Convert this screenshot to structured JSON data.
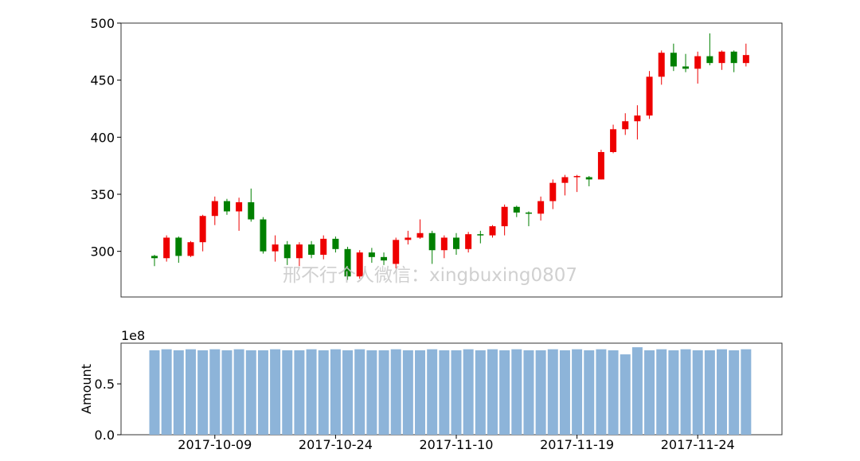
{
  "chart_data": [
    {
      "type": "candlestick",
      "ylim": [
        260,
        500
      ],
      "yticks": [
        300,
        350,
        400,
        450,
        500
      ],
      "colors": {
        "up": "#ee0000",
        "down": "#008000"
      },
      "ohlc": [
        [
          296,
          294,
          297,
          287
        ],
        [
          294,
          312,
          314,
          291
        ],
        [
          312,
          296,
          313,
          290
        ],
        [
          296,
          308,
          309,
          295
        ],
        [
          308,
          331,
          332,
          300
        ],
        [
          331,
          344,
          348,
          323
        ],
        [
          344,
          335,
          346,
          332
        ],
        [
          335,
          343,
          347,
          318
        ],
        [
          343,
          328,
          355,
          326
        ],
        [
          328,
          300,
          330,
          298
        ],
        [
          300,
          306,
          314,
          291
        ],
        [
          306,
          294,
          309,
          288
        ],
        [
          294,
          306,
          308,
          287
        ],
        [
          306,
          297,
          309,
          294
        ],
        [
          297,
          311,
          314,
          293
        ],
        [
          311,
          302,
          313,
          299
        ],
        [
          302,
          278,
          304,
          275
        ],
        [
          278,
          299,
          301,
          276
        ],
        [
          299,
          295,
          303,
          290
        ],
        [
          295,
          292,
          299,
          288
        ],
        [
          289,
          310,
          312,
          285
        ],
        [
          310,
          312,
          318,
          306
        ],
        [
          312,
          316,
          328,
          311
        ],
        [
          316,
          301,
          318,
          289
        ],
        [
          301,
          312,
          314,
          294
        ],
        [
          312,
          302,
          316,
          297
        ],
        [
          302,
          315,
          317,
          299
        ],
        [
          315,
          314,
          318,
          307
        ],
        [
          314,
          322,
          323,
          312
        ],
        [
          322,
          339,
          341,
          314
        ],
        [
          339,
          334,
          340,
          330
        ],
        [
          334,
          333,
          335,
          322
        ],
        [
          333,
          344,
          348,
          327
        ],
        [
          344,
          360,
          363,
          337
        ],
        [
          360,
          365,
          367,
          349
        ],
        [
          365,
          366,
          367,
          352
        ],
        [
          365,
          363,
          366,
          357
        ],
        [
          363,
          387,
          389,
          363
        ],
        [
          387,
          407,
          411,
          386
        ],
        [
          407,
          414,
          421,
          402
        ],
        [
          414,
          419,
          428,
          398
        ],
        [
          419,
          453,
          458,
          416
        ],
        [
          453,
          474,
          476,
          446
        ],
        [
          474,
          462,
          482,
          458
        ],
        [
          462,
          460,
          473,
          457
        ],
        [
          460,
          471,
          475,
          447
        ],
        [
          471,
          465,
          491,
          463
        ],
        [
          465,
          475,
          476,
          459
        ],
        [
          475,
          465,
          476,
          457
        ],
        [
          465,
          472,
          482,
          462
        ]
      ]
    },
    {
      "type": "bar",
      "ylabel": "Amount",
      "multiplier_label": "1e8",
      "ylim": [
        0,
        0.9
      ],
      "yticks": [
        "0.0",
        "0.5"
      ],
      "ytick_values": [
        0,
        0.5
      ],
      "bar_color": "#8db4d9",
      "values": [
        0.83,
        0.84,
        0.83,
        0.84,
        0.83,
        0.84,
        0.83,
        0.84,
        0.83,
        0.83,
        0.84,
        0.83,
        0.83,
        0.84,
        0.83,
        0.84,
        0.83,
        0.84,
        0.83,
        0.83,
        0.84,
        0.83,
        0.83,
        0.84,
        0.83,
        0.83,
        0.84,
        0.83,
        0.84,
        0.83,
        0.84,
        0.83,
        0.83,
        0.84,
        0.83,
        0.84,
        0.83,
        0.84,
        0.83,
        0.79,
        0.86,
        0.83,
        0.84,
        0.83,
        0.84,
        0.83,
        0.83,
        0.84,
        0.83,
        0.84
      ],
      "xtick_labels": [
        "2017-10-09",
        "2017-10-24",
        "2017-11-10",
        "2017-11-19",
        "2017-11-24"
      ],
      "xtick_indices": [
        5,
        15,
        25,
        35,
        45
      ]
    }
  ],
  "watermark": "邢不行个人微信：xingbuxing0807"
}
